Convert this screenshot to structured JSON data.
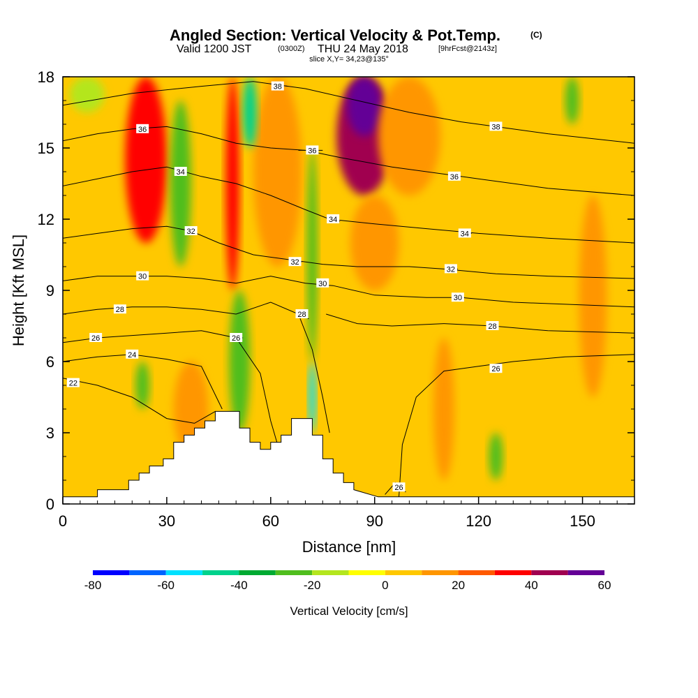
{
  "title": {
    "main": "Angled Section: Vertical Velocity & Pot.Temp.",
    "units_tag": "(C)",
    "valid_prefix": "Valid 1200 JST",
    "valid_utc": "(0300Z)",
    "valid_date": "THU 24 May 2018",
    "forecast": "[9hrFcst@2143z]",
    "slice": "slice X,Y= 34,23@135°"
  },
  "chart_data": {
    "type": "heatmap",
    "xlabel": "Distance [nm]",
    "ylabel": "Height [Kft MSL]",
    "xlim": [
      0,
      165
    ],
    "ylim": [
      0,
      18
    ],
    "x_ticks": [
      0,
      30,
      60,
      90,
      120,
      150
    ],
    "y_ticks": [
      0,
      3,
      6,
      9,
      12,
      15,
      18
    ],
    "grid": false,
    "colorbar": {
      "title": "Vertical Velocity [cm/s]",
      "levels": [
        -80,
        -70,
        -60,
        -50,
        -40,
        -30,
        -20,
        -10,
        0,
        10,
        20,
        30,
        40,
        50,
        60
      ],
      "tick_values": [
        -80,
        -60,
        -40,
        -20,
        0,
        20,
        40,
        60
      ],
      "colors": [
        "#0000ff",
        "#0064ff",
        "#00e1ff",
        "#00d28c",
        "#00aa32",
        "#50be1e",
        "#b4e61e",
        "#ffff00",
        "#ffc800",
        "#ff9600",
        "#ff5a00",
        "#ff0000",
        "#a00050",
        "#640096"
      ]
    },
    "vertical_velocity_features": [
      {
        "x_center": 24,
        "x_halfwidth": 6,
        "y_base": 11,
        "y_top": 18,
        "value": 38
      },
      {
        "x_center": 49,
        "x_halfwidth": 2,
        "y_base": 9,
        "y_top": 18,
        "value": 38
      },
      {
        "x_center": 87,
        "x_halfwidth": 8,
        "y_base": 13,
        "y_top": 18,
        "value": 40
      },
      {
        "x_center": 87,
        "x_halfwidth": 5,
        "y_base": 15.5,
        "y_top": 18,
        "value": 52
      },
      {
        "x_center": 90,
        "x_halfwidth": 7,
        "y_base": 9,
        "y_top": 13,
        "value": 15
      },
      {
        "x_center": 100,
        "x_halfwidth": 9,
        "y_base": 13,
        "y_top": 18,
        "value": 15
      },
      {
        "x_center": 62,
        "x_halfwidth": 7,
        "y_base": 10,
        "y_top": 18,
        "value": 15
      },
      {
        "x_center": 110,
        "x_halfwidth": 3,
        "y_base": 1,
        "y_top": 7,
        "value": 15
      },
      {
        "x_center": 153,
        "x_halfwidth": 4,
        "y_base": 4.5,
        "y_top": 13,
        "value": 15
      },
      {
        "x_center": 37,
        "x_halfwidth": 5,
        "y_base": 2,
        "y_top": 6,
        "value": 15
      },
      {
        "x_center": 34,
        "x_halfwidth": 3,
        "y_base": 10,
        "y_top": 17,
        "value": -28
      },
      {
        "x_center": 54,
        "x_halfwidth": 2,
        "y_base": 15,
        "y_top": 18,
        "value": -50
      },
      {
        "x_center": 72,
        "x_halfwidth": 1.5,
        "y_base": 6,
        "y_top": 15,
        "value": -28
      },
      {
        "x_center": 72,
        "x_halfwidth": 1,
        "y_base": 3,
        "y_top": 6,
        "value": -55
      },
      {
        "x_center": 51,
        "x_halfwidth": 3,
        "y_base": 3,
        "y_top": 9,
        "value": -28
      },
      {
        "x_center": 23,
        "x_halfwidth": 2,
        "y_base": 4,
        "y_top": 6,
        "value": -28
      },
      {
        "x_center": 125,
        "x_halfwidth": 2,
        "y_base": 1,
        "y_top": 3,
        "value": -28
      },
      {
        "x_center": 147,
        "x_halfwidth": 2,
        "y_base": 16,
        "y_top": 18,
        "value": -28
      },
      {
        "x_center": 7,
        "x_halfwidth": 5,
        "y_base": 16.5,
        "y_top": 18,
        "value": -12
      }
    ],
    "terrain": {
      "x": [
        0,
        10,
        10,
        19,
        19,
        22,
        22,
        25,
        25,
        29,
        29,
        32,
        32,
        35,
        35,
        38,
        38,
        41,
        41,
        44,
        44,
        51,
        51,
        54,
        54,
        57,
        57,
        60,
        60,
        63,
        63,
        66,
        66,
        72,
        72,
        75,
        75,
        78,
        78,
        81,
        81,
        84,
        84,
        91,
        165
      ],
      "height": [
        0.3,
        0.3,
        0.6,
        0.6,
        1.0,
        1.0,
        1.3,
        1.3,
        1.6,
        1.6,
        1.9,
        1.9,
        2.6,
        2.6,
        2.9,
        2.9,
        3.2,
        3.2,
        3.5,
        3.5,
        3.9,
        3.9,
        3.2,
        3.2,
        2.6,
        2.6,
        2.3,
        2.3,
        2.6,
        2.6,
        2.9,
        2.9,
        3.6,
        3.6,
        2.9,
        2.9,
        1.9,
        1.9,
        1.3,
        1.3,
        0.9,
        0.9,
        0.6,
        0.3,
        0.3
      ]
    },
    "contours": [
      {
        "id": "22",
        "label": "22",
        "label_at": [
          3,
          5.1
        ],
        "points": [
          [
            0,
            5.3
          ],
          [
            10,
            5.0
          ],
          [
            20,
            4.5
          ],
          [
            30,
            3.6
          ],
          [
            38,
            3.4
          ],
          [
            44,
            3.9
          ]
        ]
      },
      {
        "id": "24",
        "label": "24",
        "label_at": [
          20,
          6.3
        ],
        "points": [
          [
            0,
            6.0
          ],
          [
            10,
            6.2
          ],
          [
            20,
            6.3
          ],
          [
            30,
            6.1
          ],
          [
            40,
            5.8
          ],
          [
            46,
            4.0
          ]
        ]
      },
      {
        "id": "26",
        "label": "26",
        "label_at": [
          9.5,
          7.0
        ],
        "points": [
          [
            0,
            6.8
          ],
          [
            10,
            7.0
          ],
          [
            20,
            7.1
          ],
          [
            30,
            7.2
          ],
          [
            40,
            7.3
          ],
          [
            50,
            7.0
          ],
          [
            57,
            5.5
          ],
          [
            60,
            3.5
          ],
          [
            62,
            2.5
          ]
        ]
      },
      {
        "id": "26b",
        "label": "26",
        "label_at": [
          125,
          5.7
        ],
        "points": [
          [
            97,
            0.3
          ],
          [
            98,
            2.5
          ],
          [
            102,
            4.5
          ],
          [
            110,
            5.6
          ],
          [
            120,
            5.8
          ],
          [
            130,
            6.0
          ],
          [
            145,
            6.2
          ],
          [
            165,
            6.3
          ]
        ]
      },
      {
        "id": "26c",
        "label": "26",
        "label_at": [
          97,
          0.7
        ],
        "points": [
          [
            93,
            0.4
          ],
          [
            96,
            0.9
          ],
          [
            99,
            0.5
          ]
        ]
      },
      {
        "id": "28",
        "label": "28",
        "label_at": [
          16.5,
          8.2
        ],
        "points": [
          [
            0,
            8.0
          ],
          [
            10,
            8.2
          ],
          [
            20,
            8.3
          ],
          [
            30,
            8.3
          ],
          [
            40,
            8.2
          ],
          [
            50,
            8.0
          ],
          [
            60,
            8.5
          ],
          [
            68,
            8.0
          ],
          [
            72,
            6.5
          ],
          [
            75,
            4.5
          ],
          [
            77,
            3.0
          ]
        ]
      },
      {
        "id": "28b",
        "label": "28",
        "label_at": [
          124,
          7.5
        ],
        "points": [
          [
            76,
            8.0
          ],
          [
            85,
            7.6
          ],
          [
            95,
            7.5
          ],
          [
            110,
            7.6
          ],
          [
            124,
            7.5
          ],
          [
            140,
            7.3
          ],
          [
            165,
            7.2
          ]
        ]
      },
      {
        "id": "30",
        "label": "30",
        "label_at": [
          23,
          9.6
        ],
        "points": [
          [
            0,
            9.4
          ],
          [
            10,
            9.6
          ],
          [
            20,
            9.6
          ],
          [
            30,
            9.6
          ],
          [
            40,
            9.5
          ],
          [
            50,
            9.3
          ],
          [
            60,
            9.6
          ],
          [
            70,
            9.3
          ],
          [
            78,
            9.2
          ],
          [
            90,
            8.8
          ],
          [
            105,
            8.7
          ],
          [
            115,
            8.7
          ],
          [
            130,
            8.5
          ],
          [
            165,
            8.3
          ]
        ]
      },
      {
        "id": "32",
        "label": "32",
        "label_at": [
          37,
          11.5
        ],
        "points": [
          [
            0,
            11.2
          ],
          [
            10,
            11.4
          ],
          [
            20,
            11.6
          ],
          [
            30,
            11.7
          ],
          [
            37,
            11.5
          ],
          [
            45,
            11.0
          ],
          [
            55,
            10.5
          ],
          [
            65,
            10.3
          ],
          [
            75,
            10.1
          ],
          [
            85,
            10.0
          ],
          [
            100,
            10.0
          ],
          [
            110,
            9.9
          ],
          [
            125,
            9.7
          ],
          [
            140,
            9.6
          ],
          [
            165,
            9.5
          ]
        ]
      },
      {
        "id": "34",
        "label": "34",
        "label_at": [
          34,
          14.0
        ],
        "points": [
          [
            0,
            13.4
          ],
          [
            10,
            13.7
          ],
          [
            20,
            14.0
          ],
          [
            30,
            14.2
          ],
          [
            40,
            13.8
          ],
          [
            50,
            13.5
          ],
          [
            60,
            13.0
          ],
          [
            70,
            12.4
          ],
          [
            77,
            12.0
          ],
          [
            90,
            11.8
          ],
          [
            105,
            11.6
          ],
          [
            120,
            11.4
          ],
          [
            140,
            11.2
          ],
          [
            165,
            11.0
          ]
        ]
      },
      {
        "id": "36",
        "label": "36",
        "label_at": [
          23,
          15.8
        ],
        "points": [
          [
            0,
            15.3
          ],
          [
            10,
            15.6
          ],
          [
            20,
            15.8
          ],
          [
            30,
            15.9
          ],
          [
            40,
            15.6
          ],
          [
            50,
            15.2
          ],
          [
            60,
            15.0
          ],
          [
            70,
            14.9
          ],
          [
            80,
            14.6
          ],
          [
            95,
            14.2
          ],
          [
            110,
            13.9
          ],
          [
            120,
            13.7
          ],
          [
            140,
            13.3
          ],
          [
            165,
            13.0
          ]
        ]
      },
      {
        "id": "36b",
        "label": "36",
        "label_at": [
          72,
          14.9
        ],
        "points": [
          [
            68,
            14.9
          ],
          [
            75,
            14.9
          ]
        ]
      },
      {
        "id": "38",
        "label": "38",
        "label_at": [
          125,
          15.9
        ],
        "points": [
          [
            0,
            16.8
          ],
          [
            20,
            17.3
          ],
          [
            40,
            17.6
          ],
          [
            55,
            17.8
          ],
          [
            70,
            17.5
          ],
          [
            85,
            17.0
          ],
          [
            100,
            16.5
          ],
          [
            115,
            16.1
          ],
          [
            125,
            15.9
          ],
          [
            140,
            15.6
          ],
          [
            165,
            15.2
          ]
        ]
      },
      {
        "id": "38b",
        "label": "38",
        "label_at": [
          62,
          17.6
        ],
        "points": [
          [
            60,
            17.7
          ],
          [
            65,
            17.6
          ]
        ]
      },
      {
        "id": "30c",
        "label": "30",
        "label_at": [
          75,
          9.3
        ],
        "points": [
          [
            74,
            9.3
          ],
          [
            77,
            9.2
          ]
        ]
      },
      {
        "id": "32c",
        "label": "32",
        "label_at": [
          67,
          10.2
        ],
        "points": [
          [
            66,
            10.3
          ],
          [
            69,
            10.2
          ]
        ]
      },
      {
        "id": "28c",
        "label": "28",
        "label_at": [
          69,
          8.0
        ],
        "points": [
          [
            68,
            8.1
          ],
          [
            71,
            7.8
          ]
        ]
      },
      {
        "id": "34c",
        "label": "34",
        "label_at": [
          78,
          12.0
        ],
        "points": [
          [
            77,
            12.0
          ],
          [
            80,
            11.9
          ]
        ]
      },
      {
        "id": "32d",
        "label": "32",
        "label_at": [
          112,
          9.9
        ],
        "points": [
          [
            111,
            9.9
          ],
          [
            114,
            9.9
          ]
        ]
      },
      {
        "id": "30d",
        "label": "30",
        "label_at": [
          114,
          8.7
        ],
        "points": [
          [
            113,
            8.7
          ],
          [
            116,
            8.7
          ]
        ]
      },
      {
        "id": "34d",
        "label": "34",
        "label_at": [
          116,
          11.4
        ],
        "points": [
          [
            115,
            11.4
          ],
          [
            118,
            11.4
          ]
        ]
      },
      {
        "id": "36d",
        "label": "36",
        "label_at": [
          113,
          13.8
        ],
        "points": [
          [
            112,
            13.8
          ],
          [
            115,
            13.8
          ]
        ]
      },
      {
        "id": "26d",
        "label": "26",
        "label_at": [
          50,
          7.0
        ],
        "points": [
          [
            49,
            7.0
          ],
          [
            52,
            7.0
          ]
        ]
      },
      {
        "id": "30e",
        "label": "30",
        "label_at": [
          23,
          9.6
        ],
        "points": [
          [
            22,
            9.6
          ],
          [
            25,
            9.6
          ]
        ]
      },
      {
        "id": "28e",
        "label": "28",
        "label_at": [
          16.5,
          8.2
        ],
        "points": [
          [
            15,
            8.2
          ],
          [
            18,
            8.2
          ]
        ]
      },
      {
        "id": "24e",
        "label": "24",
        "label_at": [
          20,
          6.3
        ],
        "points": [
          [
            19,
            6.3
          ],
          [
            21,
            6.3
          ]
        ]
      }
    ]
  }
}
